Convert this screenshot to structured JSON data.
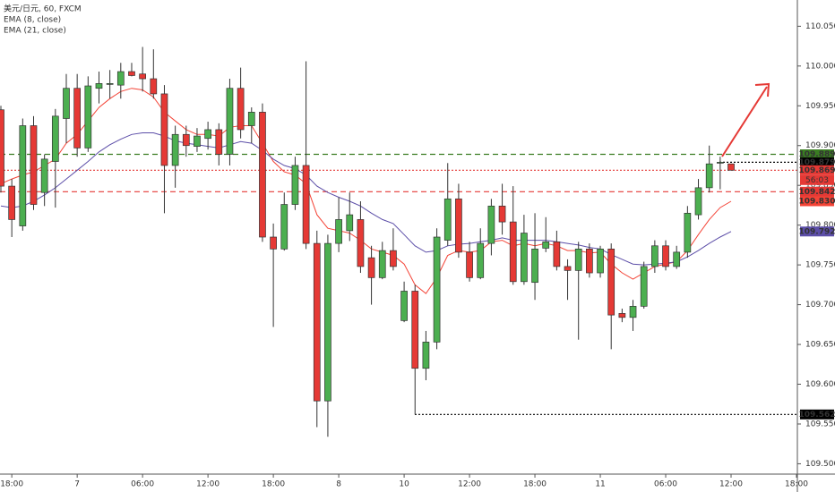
{
  "chart_data": {
    "type": "candlestick",
    "title": "美元/日元, 60, FXCM",
    "categories": [
      null,
      "18:00",
      null,
      null,
      null,
      null,
      null,
      "7",
      null,
      null,
      null,
      null,
      null,
      "06:00",
      null,
      null,
      null,
      null,
      null,
      "12:00",
      null,
      null,
      null,
      null,
      null,
      "18:00",
      null,
      null,
      null,
      null,
      null,
      "8",
      null,
      null,
      null,
      null,
      null,
      "10",
      null,
      null,
      null,
      null,
      null,
      "12:00",
      null,
      null,
      null,
      null,
      null,
      "18:00",
      null,
      null,
      null,
      null,
      null,
      "11",
      null,
      null,
      null,
      null,
      null,
      "06:00",
      null,
      null,
      null,
      null,
      null,
      "12:00",
      null,
      null,
      null,
      null,
      null,
      "18:00"
    ],
    "open": [
      109.945,
      109.849,
      109.799,
      109.925,
      109.841,
      109.88,
      109.934,
      109.972,
      109.897,
      109.972,
      109.977,
      109.976,
      109.993,
      109.99,
      109.984,
      109.965,
      109.875,
      109.914,
      109.899,
      109.909,
      109.92,
      109.889,
      109.972,
      109.925,
      109.942,
      109.785,
      109.77,
      109.826,
      109.875,
      109.777,
      109.579,
      109.777,
      109.793,
      109.807,
      109.759,
      109.734,
      109.768,
      109.68,
      109.717,
      109.62,
      109.653,
      109.781,
      109.833,
      109.766,
      109.734,
      109.777,
      109.824,
      109.804,
      109.729,
      109.728,
      109.771,
      109.779,
      109.748,
      109.743,
      109.77,
      109.74,
      109.77,
      109.689,
      109.684,
      109.698,
      109.748,
      109.774,
      109.748,
      109.766,
      109.813,
      109.847,
      109.878,
      109.877,
      null,
      null,
      null,
      null,
      null,
      null
    ],
    "high": [
      109.95,
      109.858,
      109.934,
      109.937,
      109.889,
      109.946,
      109.99,
      109.99,
      109.987,
      109.993,
      109.995,
      110.004,
      110.004,
      110.024,
      110.021,
      109.976,
      109.925,
      109.925,
      109.922,
      109.93,
      109.928,
      109.984,
      109.998,
      109.948,
      109.953,
      109.802,
      109.841,
      109.886,
      110.006,
      109.793,
      109.788,
      109.835,
      109.841,
      109.83,
      109.774,
      109.779,
      109.796,
      109.729,
      109.725,
      109.667,
      109.796,
      109.878,
      109.852,
      109.779,
      109.796,
      109.833,
      109.852,
      109.849,
      109.813,
      109.815,
      109.81,
      109.793,
      109.757,
      109.779,
      109.777,
      109.774,
      109.777,
      109.695,
      109.706,
      109.754,
      109.781,
      109.781,
      109.774,
      109.824,
      109.858,
      109.9,
      109.886,
      109.877,
      null,
      null,
      null,
      null,
      null,
      null
    ],
    "low": [
      109.841,
      109.785,
      109.793,
      109.819,
      109.824,
      109.822,
      109.903,
      109.886,
      109.892,
      109.953,
      109.959,
      109.959,
      109.987,
      109.968,
      109.959,
      109.815,
      109.847,
      109.886,
      109.892,
      109.895,
      109.875,
      109.875,
      109.909,
      109.903,
      109.779,
      109.672,
      109.768,
      109.819,
      109.77,
      109.546,
      109.534,
      109.766,
      109.78,
      109.74,
      109.7,
      109.732,
      109.743,
      109.678,
      109.562,
      109.605,
      109.644,
      109.774,
      109.759,
      109.729,
      109.732,
      109.762,
      109.788,
      109.725,
      109.725,
      109.706,
      109.766,
      109.743,
      109.706,
      109.656,
      109.734,
      109.734,
      109.644,
      109.678,
      109.667,
      109.695,
      109.74,
      109.743,
      109.745,
      109.759,
      109.807,
      109.841,
      109.845,
      109.869,
      null,
      null,
      null,
      null,
      null,
      null
    ],
    "close": [
      109.849,
      109.807,
      109.925,
      109.826,
      109.883,
      109.937,
      109.972,
      109.897,
      109.975,
      109.978,
      109.978,
      109.993,
      109.988,
      109.984,
      109.965,
      109.875,
      109.914,
      109.9,
      109.912,
      109.92,
      109.889,
      109.972,
      109.92,
      109.942,
      109.785,
      109.77,
      109.826,
      109.875,
      109.777,
      109.579,
      109.777,
      109.807,
      109.813,
      109.748,
      109.734,
      109.768,
      109.748,
      109.717,
      109.62,
      109.653,
      109.785,
      109.833,
      109.766,
      109.734,
      109.777,
      109.824,
      109.804,
      109.729,
      109.79,
      109.77,
      109.779,
      109.748,
      109.743,
      109.77,
      109.74,
      109.77,
      109.687,
      109.684,
      109.698,
      109.748,
      109.774,
      109.748,
      109.766,
      109.815,
      109.847,
      109.877,
      109.879,
      109.869,
      null,
      null,
      null,
      null,
      null,
      null
    ],
    "up_color": "#4caf50",
    "down_color": "#e53935",
    "overlays": [
      {
        "name": "EMA (8, close)",
        "color": "#f44336",
        "values": [
          109.852,
          109.858,
          109.863,
          109.867,
          109.875,
          109.883,
          109.903,
          109.914,
          109.931,
          109.948,
          109.959,
          109.968,
          109.972,
          109.97,
          109.961,
          109.942,
          109.931,
          109.92,
          109.914,
          109.914,
          109.912,
          109.923,
          109.925,
          109.925,
          109.903,
          109.88,
          109.867,
          109.863,
          109.852,
          109.813,
          109.796,
          109.793,
          109.79,
          109.781,
          109.77,
          109.766,
          109.762,
          109.751,
          109.725,
          109.714,
          109.734,
          109.762,
          109.768,
          109.766,
          109.768,
          109.779,
          109.781,
          109.774,
          109.777,
          109.774,
          109.777,
          109.774,
          109.768,
          109.768,
          109.765,
          109.766,
          109.751,
          109.74,
          109.732,
          109.74,
          109.748,
          109.751,
          109.754,
          109.768,
          109.788,
          109.807,
          109.822,
          109.83,
          null,
          null,
          null,
          null,
          null,
          null
        ]
      },
      {
        "name": "EMA (21, close)",
        "color": "#5c4ea8",
        "values": [
          109.824,
          109.822,
          109.824,
          109.83,
          109.838,
          109.847,
          109.858,
          109.869,
          109.88,
          109.892,
          109.901,
          109.908,
          109.914,
          109.916,
          109.916,
          109.912,
          109.906,
          109.903,
          109.901,
          109.899,
          109.897,
          109.901,
          109.905,
          109.903,
          109.894,
          109.883,
          109.875,
          109.871,
          109.863,
          109.849,
          109.841,
          109.835,
          109.83,
          109.824,
          109.815,
          109.807,
          109.802,
          109.788,
          109.774,
          109.766,
          109.768,
          109.774,
          109.776,
          109.777,
          109.779,
          109.781,
          109.784,
          109.781,
          109.781,
          109.781,
          109.781,
          109.779,
          109.777,
          109.775,
          109.772,
          109.77,
          109.763,
          109.757,
          109.751,
          109.75,
          109.751,
          109.752,
          109.754,
          109.76,
          109.768,
          109.777,
          109.785,
          109.792,
          null,
          null,
          null,
          null,
          null,
          null
        ]
      }
    ],
    "ylim": [
      109.487,
      110.083
    ],
    "yticks": [
      {
        "value": 110.05,
        "label": "110.050"
      },
      {
        "value": 110.0,
        "label": "110.000"
      },
      {
        "value": 109.95,
        "label": "109.950"
      },
      {
        "value": 109.9,
        "label": "109.900"
      },
      {
        "value": 109.85,
        "label": "109.850"
      },
      {
        "value": 109.8,
        "label": "109.800"
      },
      {
        "value": 109.75,
        "label": "109.750"
      },
      {
        "value": 109.7,
        "label": "109.700"
      },
      {
        "value": 109.65,
        "label": "109.650"
      },
      {
        "value": 109.6,
        "label": "109.600"
      },
      {
        "value": 109.55,
        "label": "109.550"
      },
      {
        "value": 109.5,
        "label": "109.500"
      }
    ],
    "grid": false,
    "hlines": [
      {
        "value": 109.889,
        "color": "#3a7d22",
        "dash": "6 4"
      },
      {
        "value": 109.879,
        "color": "#000000",
        "dash": "2 2"
      },
      {
        "value": 109.869,
        "color": "#e53935",
        "dash": "2 2"
      },
      {
        "value": 109.842,
        "color": "#e53935",
        "dash": "6 4"
      },
      {
        "value": 109.562,
        "color": "#000000",
        "dash": "2 2"
      }
    ],
    "price_labels": [
      {
        "value": 109.889,
        "label": "109.889",
        "color": "#3a7d22"
      },
      {
        "value": 109.879,
        "label": "109.879",
        "color": "#000000"
      },
      {
        "value": 109.869,
        "label": "109.869",
        "color": "#e53935"
      },
      {
        "value": 109.842,
        "label": "109.842",
        "color": "#e53935"
      },
      {
        "value": 109.83,
        "label": "109.830",
        "color": "#f44336"
      },
      {
        "value": 109.792,
        "label": "109.792",
        "color": "#5c4ea8"
      },
      {
        "value": 109.562,
        "label": "109.562",
        "color": "#000000"
      }
    ],
    "countdown": "56:03"
  }
}
